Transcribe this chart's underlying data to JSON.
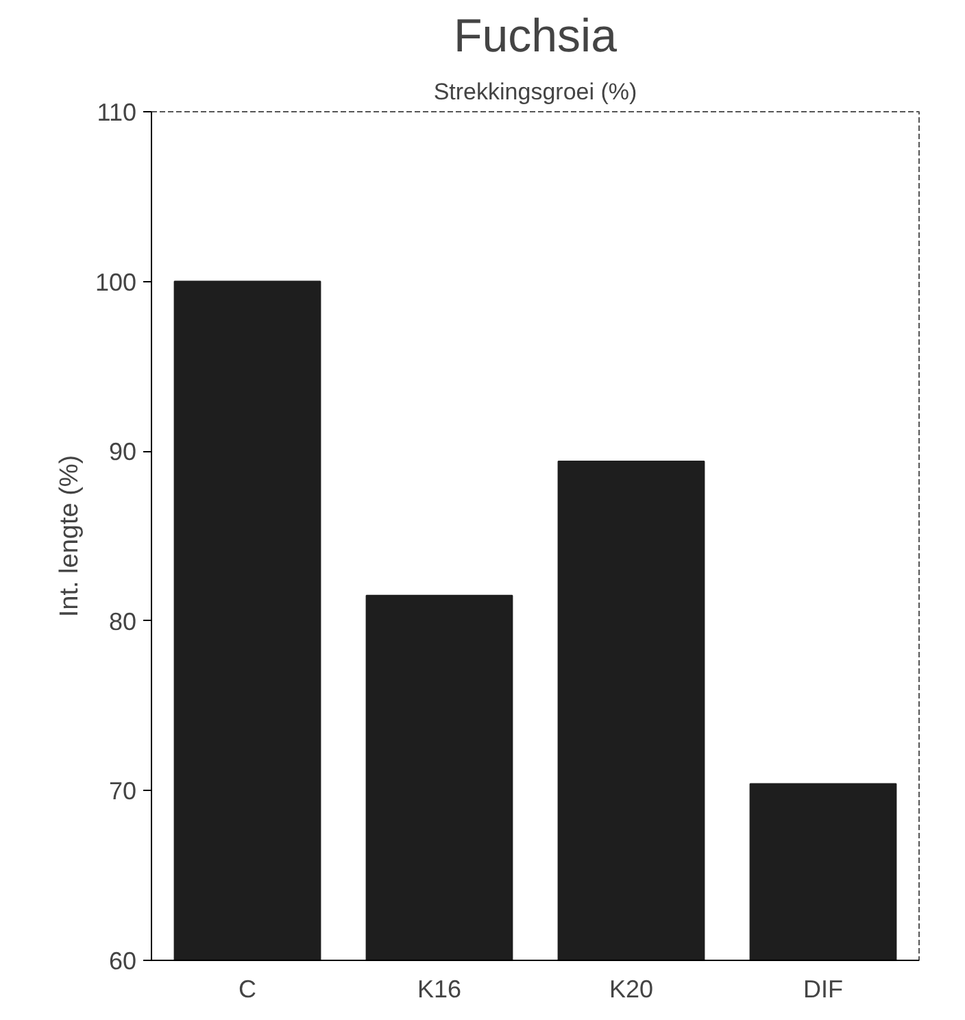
{
  "chart_data": {
    "type": "bar",
    "title": "Fuchsia",
    "subtitle": "Strekkingsgroei (%)",
    "ylabel": "Int. lengte (%)",
    "categories": [
      "C",
      "K16",
      "K20",
      "DIF"
    ],
    "values": [
      100,
      81.5,
      89.4,
      70.4
    ],
    "color": "#1e1e1e",
    "ylim": [
      60,
      110
    ],
    "yticks": [
      60,
      70,
      80,
      90,
      100,
      110
    ],
    "grid": false
  }
}
